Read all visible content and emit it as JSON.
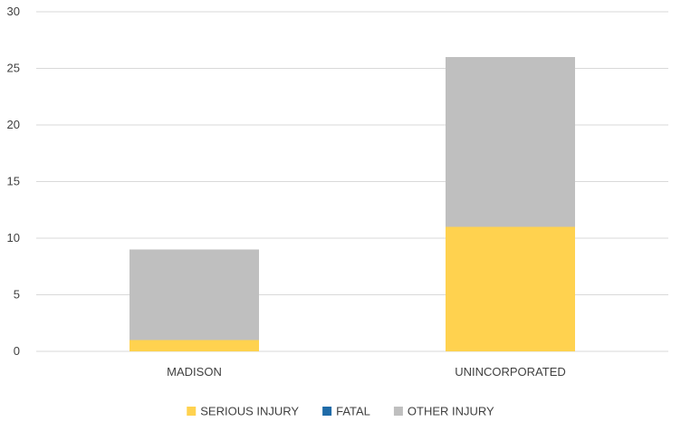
{
  "chart_data": {
    "type": "bar",
    "stacked": true,
    "categories": [
      "MADISON",
      "UNINCORPORATED"
    ],
    "series": [
      {
        "name": "SERIOUS INJURY",
        "values": [
          1,
          11
        ],
        "color": "#FFD24F"
      },
      {
        "name": "FATAL",
        "values": [
          0,
          0
        ],
        "color": "#1F6BA8"
      },
      {
        "name": "OTHER INJURY",
        "values": [
          8,
          15
        ],
        "color": "#BFBFBF"
      }
    ],
    "ylim": [
      0,
      30
    ],
    "yticks": [
      0,
      5,
      10,
      15,
      20,
      25,
      30
    ],
    "grid": true,
    "legend": "bottom"
  }
}
